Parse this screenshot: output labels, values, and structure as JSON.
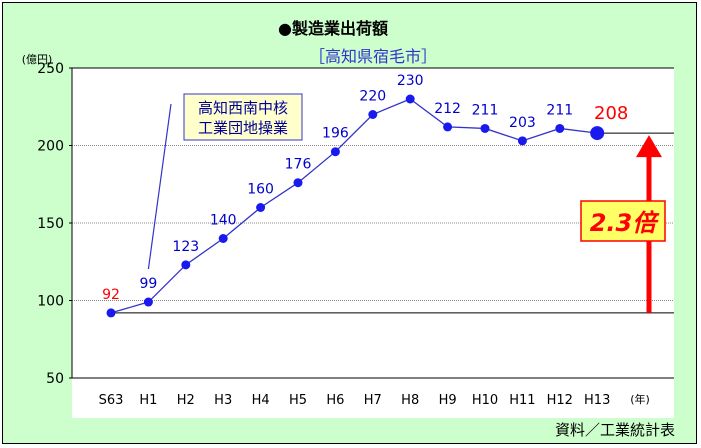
{
  "chart_data": {
    "type": "line",
    "title": "●製造業出荷額",
    "subtitle": "［高知県宿毛市］",
    "ylabel": "(億円)",
    "xlabel": "(年)",
    "source": "資料／工業統計表",
    "ylim": [
      50,
      250
    ],
    "yticks": [
      50,
      100,
      150,
      200,
      250
    ],
    "categories": [
      "S63",
      "H1",
      "H2",
      "H3",
      "H4",
      "H5",
      "H6",
      "H7",
      "H8",
      "H9",
      "H10",
      "H11",
      "H12",
      "H13"
    ],
    "series": [
      {
        "values": [
          92,
          99,
          123,
          140,
          160,
          176,
          196,
          220,
          230,
          212,
          211,
          203,
          211,
          208
        ]
      }
    ],
    "data_labels": [
      "92",
      "99",
      "123",
      "140",
      "160",
      "176",
      "196",
      "220",
      "230",
      "212",
      "211",
      "203",
      "211",
      "208"
    ],
    "colors": {
      "line": "#3333cc",
      "marker": "#1a1aee",
      "first_label": "#ff0000",
      "last_label": "#ff0000",
      "label": "#0000cc",
      "arrow": "#ff0000",
      "background": "#ccffcc",
      "callout_bg": "#ffffcc"
    },
    "grid": true,
    "annotations": {
      "callout_line1": "高知西南中核",
      "callout_line2": "工業団地操業",
      "callout_points_to": "H1",
      "ratio": "2.3倍",
      "ratio_from": 92,
      "ratio_to": 208
    }
  }
}
